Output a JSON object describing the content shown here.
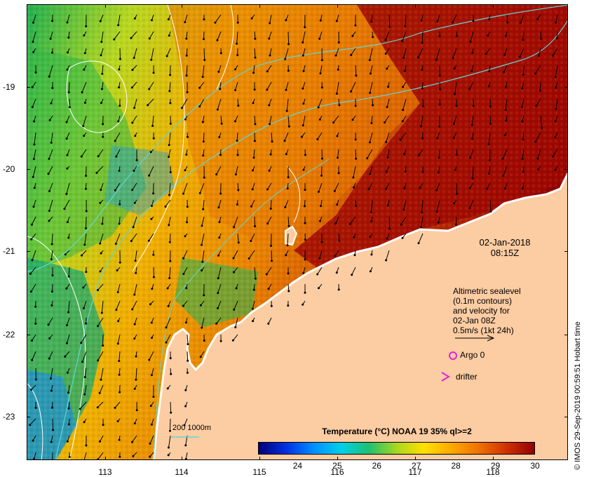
{
  "colors": {
    "land": "#fccca2",
    "coast_edge": "#ffffff",
    "contour_cyan": "#5fd6d6",
    "contour_white": "#ffffff",
    "argo": "#e020e0",
    "drifter": "#e020e0"
  },
  "map": {
    "x_ticks": [
      "113",
      "114",
      "115",
      "116",
      "117",
      "118"
    ],
    "y_ticks": [
      "-19",
      "-20",
      "-21",
      "-22",
      "-23"
    ],
    "date": "02-Jan-2018",
    "time": "08:15Z",
    "bathymetry_label": "200  1000m",
    "legend": {
      "line1": "Altimetric sealevel",
      "line2": "(0.1m contours)",
      "line3": "and velocity for",
      "line4": "02-Jan 08Z",
      "line5": "0.5m/s (1kt 24h)",
      "argo": "Argo 0",
      "drifter": "drifter"
    },
    "credit": "© IMOS 29-Sep-2019 00:59:51 Hobart time"
  },
  "colorbar": {
    "title": "Temperature (°C) NOAA 19 35% ql>=2",
    "labels": [
      "24",
      "25",
      "26",
      "27",
      "28",
      "29",
      "30"
    ],
    "range": [
      23,
      30
    ],
    "stops": [
      "#00007a",
      "#0030e0",
      "#0090ff",
      "#00d0e8",
      "#20c070",
      "#a8d820",
      "#ffe000",
      "#ffa800",
      "#f07000",
      "#d03000",
      "#900000"
    ]
  }
}
